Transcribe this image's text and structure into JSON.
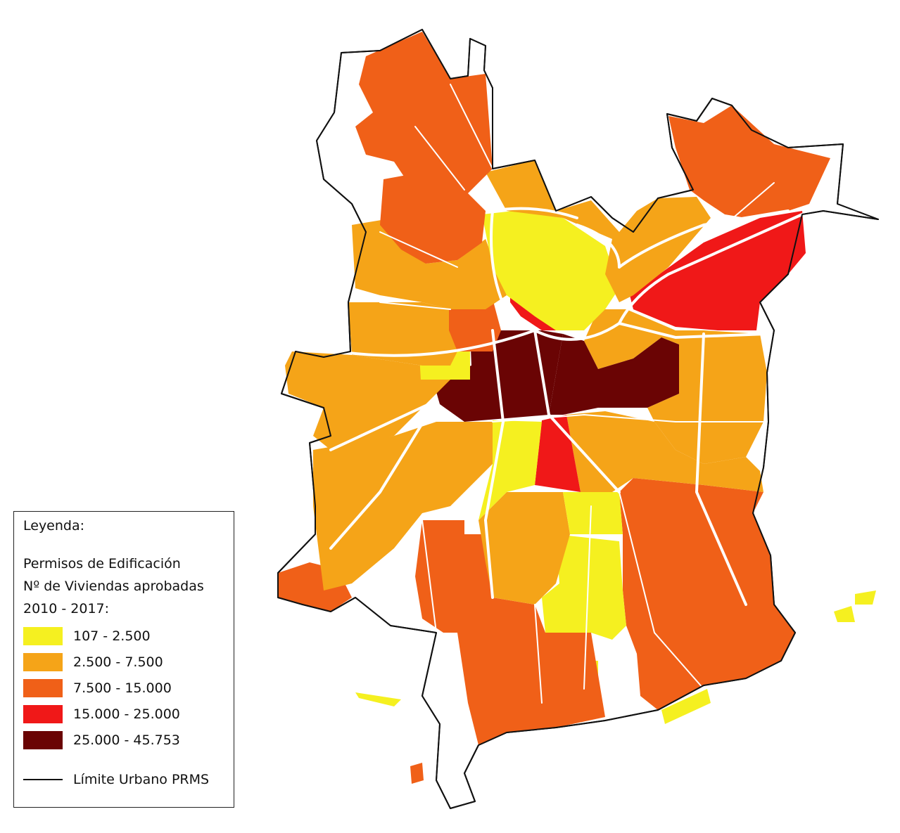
{
  "legend": {
    "title": "Leyenda:",
    "subtitle_lines": [
      "Permisos de Edificación",
      "Nº de Viviendas aprobadas",
      "2010 - 2017:"
    ],
    "classes": [
      {
        "label": "107 - 2.500",
        "color": "#f5f020",
        "min": 107,
        "max": 2500
      },
      {
        "label": "2.500 - 7.500",
        "color": "#f5a418",
        "min": 2500,
        "max": 7500
      },
      {
        "label": "7.500 - 15.000",
        "color": "#f06018",
        "min": 7500,
        "max": 15000
      },
      {
        "label": "15.000 - 25.000",
        "color": "#f01818",
        "min": 15000,
        "max": 25000
      },
      {
        "label": "25.000 - 45.753",
        "color": "#6a0404",
        "min": 25000,
        "max": 45753
      }
    ],
    "boundary_label": "Límite Urbano PRMS"
  },
  "colors": {
    "boundary": "#111111",
    "roads": "#ffffff"
  }
}
